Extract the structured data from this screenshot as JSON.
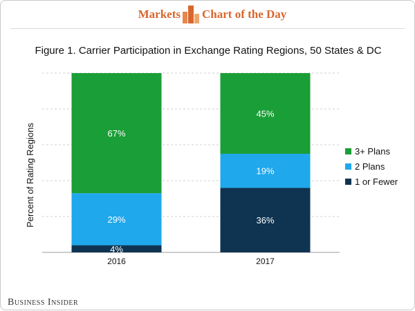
{
  "header": {
    "left_label": "Markets",
    "right_label": "Chart of the Day",
    "accent": "#d9662e"
  },
  "brand": "Business Insider",
  "chart_data": {
    "type": "bar",
    "stacked": true,
    "title": "Figure 1. Carrier Participation in Exchange Rating Regions, 50 States & DC",
    "xlabel": "",
    "ylabel": "Percent of Rating Regions",
    "ylim": [
      0,
      100
    ],
    "grid": true,
    "legend_position": "right",
    "categories": [
      "2016",
      "2017"
    ],
    "series": [
      {
        "name": "1 or Fewer",
        "values": [
          4,
          36
        ],
        "labels": [
          "4%",
          "36%"
        ],
        "color": "#0e3452"
      },
      {
        "name": "2 Plans",
        "values": [
          29,
          19
        ],
        "labels": [
          "29%",
          "19%"
        ],
        "color": "#1fa8ec"
      },
      {
        "name": "3+ Plans",
        "values": [
          67,
          45
        ],
        "labels": [
          "67%",
          "45%"
        ],
        "color": "#1a9e37"
      }
    ],
    "legend_order": [
      "3+ Plans",
      "2 Plans",
      "1 or Fewer"
    ]
  }
}
